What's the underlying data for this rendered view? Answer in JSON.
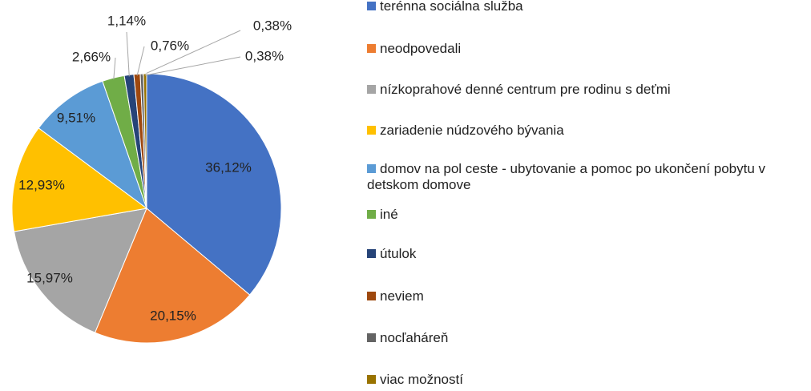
{
  "chart_data": {
    "type": "pie",
    "categories": [
      "terénna sociálna služba",
      "neodpovedali",
      "nízkoprahové denné centrum pre rodinu s deťmi",
      "zariadenie núdzového bývania",
      "domov na pol ceste - ubytovanie a pomoc po ukončení pobytu v detskom domove",
      "iné",
      "útulok",
      "neviem",
      "nocľaháreň",
      "viac možností"
    ],
    "values": [
      36.12,
      20.15,
      15.97,
      12.93,
      9.51,
      2.66,
      1.14,
      0.76,
      0.38,
      0.38
    ],
    "value_labels": [
      "36,12%",
      "20,15%",
      "15,97%",
      "12,93%",
      "9,51%",
      "2,66%",
      "1,14%",
      "0,76%",
      "0,38%",
      "0,38%"
    ],
    "colors": [
      "#4472c4",
      "#ed7d31",
      "#a5a5a5",
      "#ffc000",
      "#5b9bd5",
      "#70ad47",
      "#264478",
      "#9e480e",
      "#636363",
      "#997300"
    ],
    "legend": "right"
  }
}
